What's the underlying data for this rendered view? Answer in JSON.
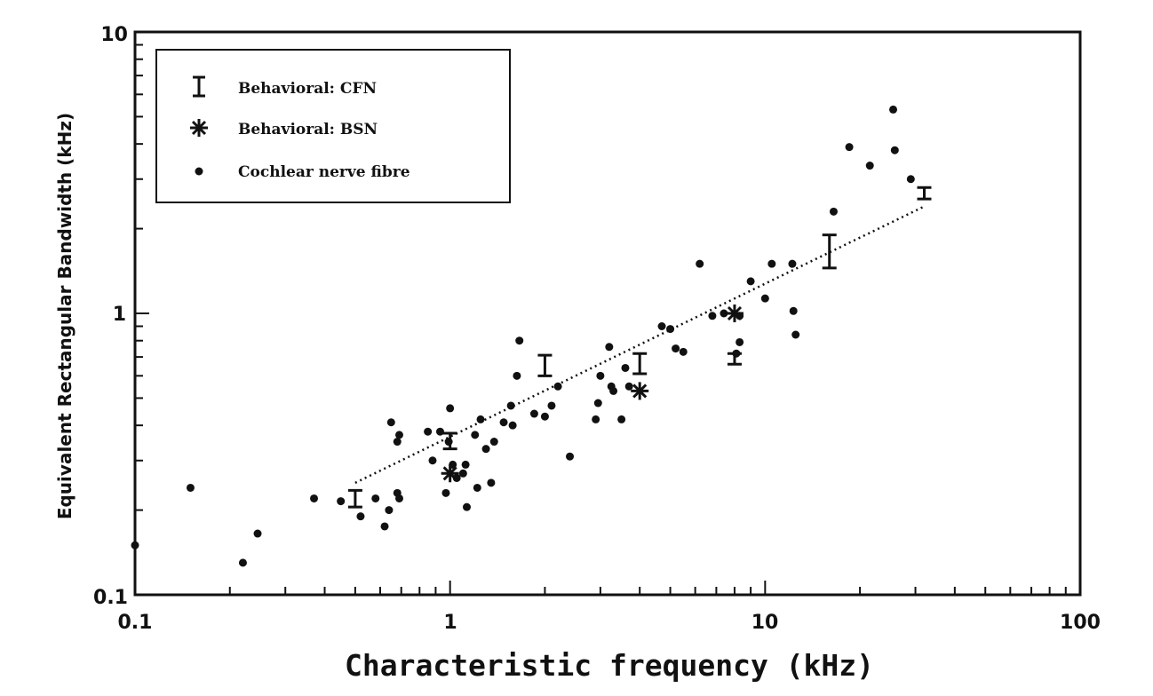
{
  "chart_data": {
    "type": "scatter",
    "xlabel": "Characteristic frequency (kHz)",
    "ylabel": "Equivalent Rectangular Bandwidth (kHz)",
    "xscale": "log",
    "yscale": "log",
    "xlim": [
      0.1,
      100
    ],
    "ylim": [
      0.1,
      10
    ],
    "x_ticks": [
      "0.1",
      "1",
      "10",
      "100"
    ],
    "y_ticks": [
      "0.1",
      "1",
      "10"
    ],
    "grid": false,
    "legend_position": "top-left",
    "legend": {
      "cfn": "Behavioral: CFN",
      "bsn": "Behavioral: BSN",
      "fibre": "Cochlear nerve fibre"
    },
    "series": [
      {
        "name": "Behavioral: CFN",
        "marker": "errorbar",
        "points": [
          {
            "x": 0.5,
            "y": 0.22,
            "ylow": 0.205,
            "yhigh": 0.235
          },
          {
            "x": 1.0,
            "y": 0.35,
            "ylow": 0.33,
            "yhigh": 0.375
          },
          {
            "x": 2.0,
            "y": 0.65,
            "ylow": 0.6,
            "yhigh": 0.71
          },
          {
            "x": 4.0,
            "y": 0.66,
            "ylow": 0.61,
            "yhigh": 0.72
          },
          {
            "x": 8.0,
            "y": 0.69,
            "ylow": 0.66,
            "yhigh": 0.72
          },
          {
            "x": 16.0,
            "y": 1.65,
            "ylow": 1.45,
            "yhigh": 1.9
          },
          {
            "x": 32.0,
            "y": 2.65,
            "ylow": 2.55,
            "yhigh": 2.8
          }
        ]
      },
      {
        "name": "Behavioral: BSN",
        "marker": "asterisk",
        "points": [
          {
            "x": 1.0,
            "y": 0.27
          },
          {
            "x": 4.0,
            "y": 0.53
          },
          {
            "x": 8.0,
            "y": 1.0
          }
        ]
      },
      {
        "name": "Cochlear nerve fibre",
        "marker": "dot",
        "points": [
          {
            "x": 0.1,
            "y": 0.15
          },
          {
            "x": 0.15,
            "y": 0.24
          },
          {
            "x": 0.22,
            "y": 0.13
          },
          {
            "x": 0.245,
            "y": 0.165
          },
          {
            "x": 0.37,
            "y": 0.22
          },
          {
            "x": 0.45,
            "y": 0.215
          },
          {
            "x": 0.52,
            "y": 0.19
          },
          {
            "x": 0.58,
            "y": 0.22
          },
          {
            "x": 0.62,
            "y": 0.175
          },
          {
            "x": 0.64,
            "y": 0.2
          },
          {
            "x": 0.65,
            "y": 0.41
          },
          {
            "x": 0.68,
            "y": 0.35
          },
          {
            "x": 0.69,
            "y": 0.37
          },
          {
            "x": 0.68,
            "y": 0.23
          },
          {
            "x": 0.69,
            "y": 0.22
          },
          {
            "x": 0.85,
            "y": 0.38
          },
          {
            "x": 0.88,
            "y": 0.3
          },
          {
            "x": 0.93,
            "y": 0.38
          },
          {
            "x": 0.97,
            "y": 0.23
          },
          {
            "x": 0.99,
            "y": 0.35
          },
          {
            "x": 1.0,
            "y": 0.46
          },
          {
            "x": 1.02,
            "y": 0.29
          },
          {
            "x": 1.05,
            "y": 0.26
          },
          {
            "x": 1.1,
            "y": 0.27
          },
          {
            "x": 1.12,
            "y": 0.29
          },
          {
            "x": 1.13,
            "y": 0.205
          },
          {
            "x": 1.2,
            "y": 0.37
          },
          {
            "x": 1.22,
            "y": 0.24
          },
          {
            "x": 1.25,
            "y": 0.42
          },
          {
            "x": 1.3,
            "y": 0.33
          },
          {
            "x": 1.35,
            "y": 0.25
          },
          {
            "x": 1.38,
            "y": 0.35
          },
          {
            "x": 1.48,
            "y": 0.41
          },
          {
            "x": 1.56,
            "y": 0.47
          },
          {
            "x": 1.58,
            "y": 0.4
          },
          {
            "x": 1.63,
            "y": 0.6
          },
          {
            "x": 1.66,
            "y": 0.8
          },
          {
            "x": 1.85,
            "y": 0.44
          },
          {
            "x": 2.0,
            "y": 0.43
          },
          {
            "x": 2.1,
            "y": 0.47
          },
          {
            "x": 2.2,
            "y": 0.55
          },
          {
            "x": 2.4,
            "y": 0.31
          },
          {
            "x": 2.9,
            "y": 0.42
          },
          {
            "x": 2.95,
            "y": 0.48
          },
          {
            "x": 3.0,
            "y": 0.6
          },
          {
            "x": 3.2,
            "y": 0.76
          },
          {
            "x": 3.25,
            "y": 0.55
          },
          {
            "x": 3.3,
            "y": 0.53
          },
          {
            "x": 3.5,
            "y": 0.42
          },
          {
            "x": 3.6,
            "y": 0.64
          },
          {
            "x": 3.7,
            "y": 0.55
          },
          {
            "x": 4.7,
            "y": 0.9
          },
          {
            "x": 5.0,
            "y": 0.88
          },
          {
            "x": 5.2,
            "y": 0.75
          },
          {
            "x": 5.5,
            "y": 0.73
          },
          {
            "x": 6.2,
            "y": 1.5
          },
          {
            "x": 6.8,
            "y": 0.98
          },
          {
            "x": 7.4,
            "y": 1.0
          },
          {
            "x": 8.3,
            "y": 0.98
          },
          {
            "x": 8.1,
            "y": 0.72
          },
          {
            "x": 8.3,
            "y": 0.79
          },
          {
            "x": 9.0,
            "y": 1.3
          },
          {
            "x": 10.0,
            "y": 1.13
          },
          {
            "x": 10.5,
            "y": 1.5
          },
          {
            "x": 12.2,
            "y": 1.5
          },
          {
            "x": 12.3,
            "y": 1.02
          },
          {
            "x": 12.5,
            "y": 0.84
          },
          {
            "x": 16.5,
            "y": 2.3
          },
          {
            "x": 18.5,
            "y": 3.9
          },
          {
            "x": 21.5,
            "y": 3.35
          },
          {
            "x": 25.5,
            "y": 5.3
          },
          {
            "x": 25.8,
            "y": 3.8
          },
          {
            "x": 29.0,
            "y": 3.0
          }
        ]
      }
    ],
    "trend_line": {
      "style": "dotted",
      "x": [
        0.5,
        32.0
      ],
      "y": [
        0.25,
        2.4
      ]
    }
  }
}
